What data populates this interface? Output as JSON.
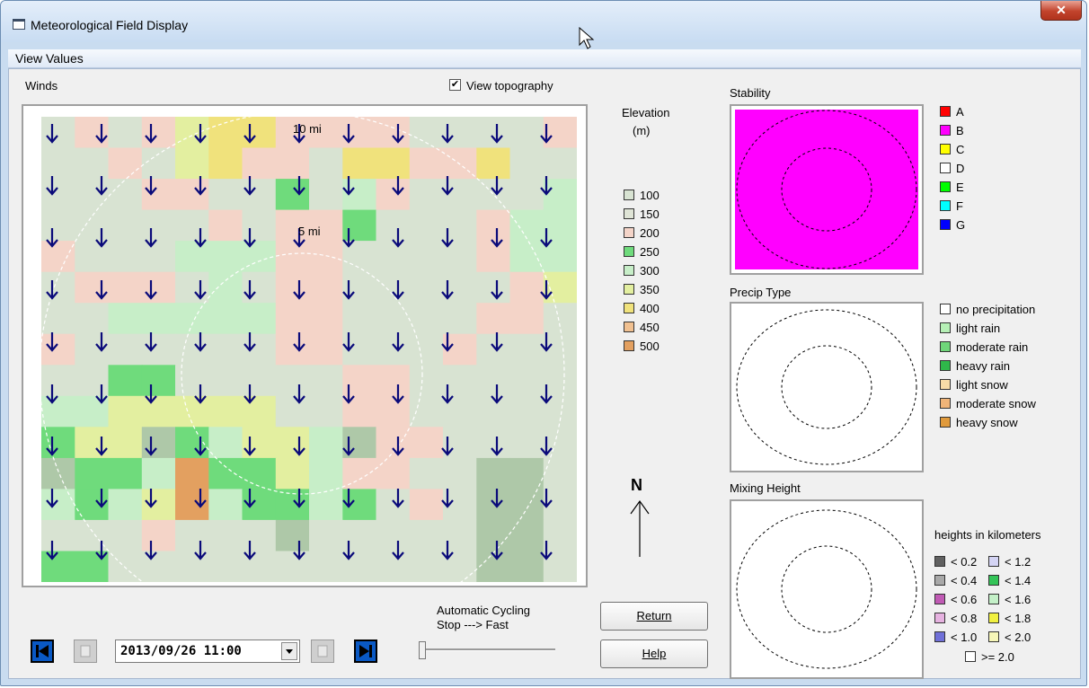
{
  "window": {
    "title": "Meteorological Field Display",
    "close_symbol": "✕"
  },
  "menu": {
    "view_values": "View Values"
  },
  "winds": {
    "label": "Winds",
    "view_topography_label": "View topography",
    "view_topography_checked": true,
    "ring_labels": [
      "10 mi",
      "5 mi"
    ],
    "elevation_grid": [
      "1010566000011110",
      "1101560016600611",
      "1110011314011114",
      "1111101003111044",
      "0111444001111044",
      "1000141001111105",
      "1144444001111001",
      "0111111001110111",
      "1133111110011111",
      "4455555110011111",
      "3552345542001111",
      "2334833540011221",
      "4345843343101221",
      "1110111211111221",
      "3311111111111221"
    ],
    "elevation_colors": [
      "#f4d4c8",
      "#d8e3d2",
      "#aec8a8",
      "#6fdb7c",
      "#c7eec8",
      "#e3efa0",
      "#f0e27c",
      "#f0c090",
      "#e3a060"
    ]
  },
  "elevation_legend": {
    "title_line1": "Elevation",
    "title_line2": "(m)",
    "items": [
      {
        "label": "100",
        "color": "#d8e3d2"
      },
      {
        "label": "150",
        "color": "#dfe4d6"
      },
      {
        "label": "200",
        "color": "#f4d4c8"
      },
      {
        "label": "250",
        "color": "#6fdb7c"
      },
      {
        "label": "300",
        "color": "#c7eec8"
      },
      {
        "label": "350",
        "color": "#e3efa0"
      },
      {
        "label": "400",
        "color": "#f0e27c"
      },
      {
        "label": "450",
        "color": "#f0c090"
      },
      {
        "label": "500",
        "color": "#e3a060"
      }
    ]
  },
  "north": {
    "label": "N"
  },
  "stability": {
    "title": "Stability",
    "fill_color": "#ff00ff",
    "items": [
      {
        "label": "A",
        "color": "#ff0000"
      },
      {
        "label": "B",
        "color": "#ff00ff"
      },
      {
        "label": "C",
        "color": "#ffff00"
      },
      {
        "label": "D",
        "color": "#ffffff"
      },
      {
        "label": "E",
        "color": "#00ff00"
      },
      {
        "label": "F",
        "color": "#00ffff"
      },
      {
        "label": "G",
        "color": "#0000ff"
      }
    ]
  },
  "precip": {
    "title": "Precip Type",
    "items": [
      {
        "label": "no precipitation",
        "color": "#ffffff"
      },
      {
        "label": "light rain",
        "color": "#b6f0b6"
      },
      {
        "label": "moderate rain",
        "color": "#6fd67a"
      },
      {
        "label": "heavy rain",
        "color": "#2fb84a"
      },
      {
        "label": "light snow",
        "color": "#f6dca8"
      },
      {
        "label": "moderate snow",
        "color": "#f0b478"
      },
      {
        "label": "heavy snow",
        "color": "#e09a3c"
      }
    ]
  },
  "mixing": {
    "title": "Mixing Height",
    "units_label": "heights in kilometers",
    "items_left": [
      {
        "label": "< 0.2",
        "color": "#606060"
      },
      {
        "label": "< 0.4",
        "color": "#a8a8a8"
      },
      {
        "label": "< 0.6",
        "color": "#c05ab4"
      },
      {
        "label": "< 0.8",
        "color": "#e6b2e0"
      },
      {
        "label": "< 1.0",
        "color": "#7070d8"
      }
    ],
    "items_right": [
      {
        "label": "< 1.2",
        "color": "#d4d4f4"
      },
      {
        "label": "< 1.4",
        "color": "#34c458"
      },
      {
        "label": "< 1.6",
        "color": "#c4f0c8"
      },
      {
        "label": "< 1.8",
        "color": "#f0f040"
      },
      {
        "label": "< 2.0",
        "color": "#f6f6b8"
      }
    ],
    "last_item": {
      "label": ">= 2.0",
      "color": "#ffffff"
    }
  },
  "controls": {
    "cycling_label_line1": "Automatic Cycling",
    "cycling_label_line2": "Stop ---> Fast",
    "datetime": "2013/09/26 11:00",
    "return_label": "Return",
    "help_label": "Help",
    "slider_value": 0
  }
}
